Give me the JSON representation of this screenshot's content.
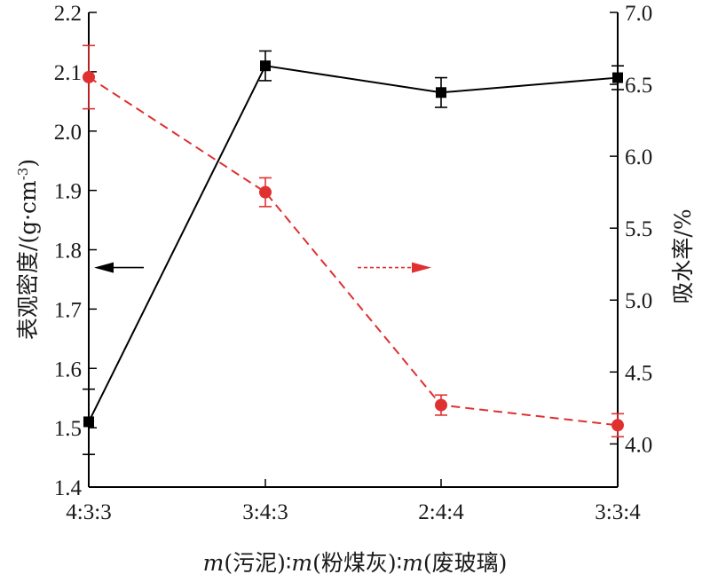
{
  "chart_data": {
    "type": "line",
    "categories": [
      "4:3:3",
      "3:4:3",
      "2:4:4",
      "3:3:4"
    ],
    "xlabel": {
      "parts": [
        {
          "text": "m",
          "italic": true
        },
        {
          "text": "(污泥)∶",
          "italic": false
        },
        {
          "text": "m",
          "italic": true
        },
        {
          "text": "(粉煤灰)∶",
          "italic": false
        },
        {
          "text": "m",
          "italic": true
        },
        {
          "text": "(废玻璃)",
          "italic": false
        }
      ]
    },
    "y_left": {
      "label": "表观密度/(g·cm",
      "label_sup": "-3",
      "label_close": ")",
      "ylim": [
        1.4,
        2.2
      ],
      "ticks": [
        "1.4",
        "1.5",
        "1.6",
        "1.7",
        "1.8",
        "1.9",
        "2.0",
        "2.1",
        "2.2"
      ]
    },
    "y_right": {
      "label": "吸水率/%",
      "ylim": [
        3.7,
        7.0
      ],
      "ticks": [
        "4.0",
        "4.5",
        "5.0",
        "5.5",
        "6.0",
        "6.5",
        "7.0"
      ]
    },
    "series": [
      {
        "axis": "left",
        "color": "#000000",
        "line_style": "solid",
        "marker": "square",
        "values": [
          1.51,
          2.11,
          2.065,
          2.09
        ],
        "errors": [
          0.055,
          0.025,
          0.025,
          0.02
        ]
      },
      {
        "axis": "right",
        "color": "#e03030",
        "line_style": "dashed",
        "marker": "circle",
        "values": [
          6.55,
          5.75,
          4.27,
          4.13
        ],
        "errors": [
          0.22,
          0.1,
          0.07,
          0.08
        ]
      }
    ],
    "annotations": [
      {
        "kind": "arrow",
        "direction": "left",
        "color": "#000000",
        "style": "solid",
        "points_to": "left-axis",
        "at_left_value": 1.77
      },
      {
        "kind": "arrow",
        "direction": "right",
        "color": "#e03030",
        "style": "dashed",
        "points_to": "right-axis",
        "at_left_value": 1.77
      }
    ],
    "grid": false
  }
}
